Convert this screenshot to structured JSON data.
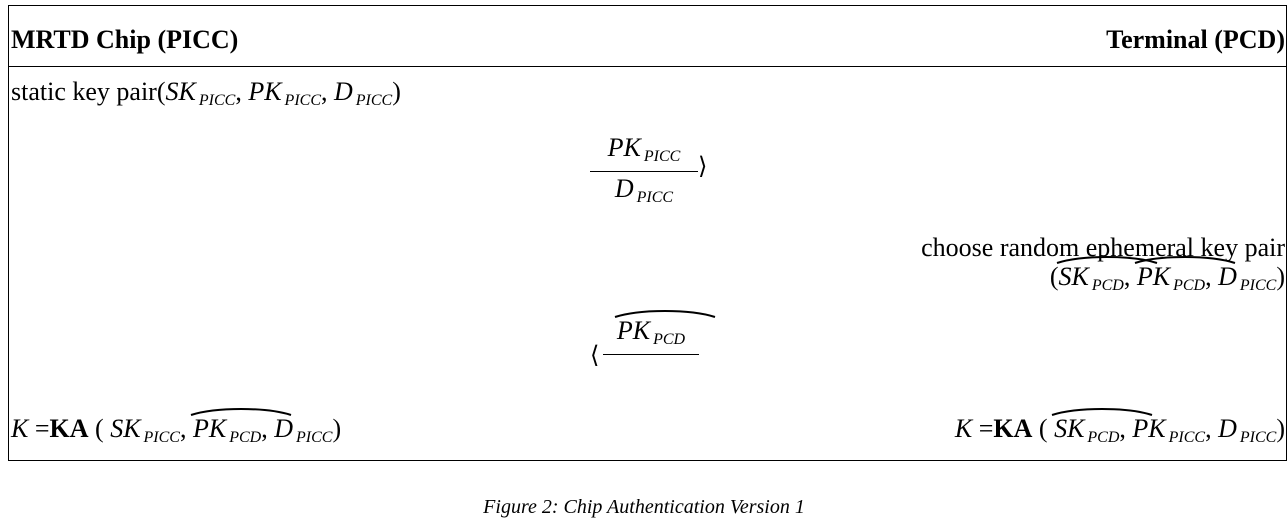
{
  "header": {
    "left": "MRTD Chip (PICC)",
    "right": "Terminal (PCD)"
  },
  "rows": {
    "static_label": "static key pair",
    "choose_text": "choose random ephemeral key pair"
  },
  "math": {
    "SK": "SK",
    "PK": "PK",
    "D": "D",
    "K": "K",
    "KA": "KA",
    "eq": "=",
    "lpar": "(",
    "rpar": ")",
    "comma": ",",
    "PICC": "PICC",
    "PCD": "PCD",
    "right_angle": "⟩",
    "left_angle": "⟨"
  },
  "caption": "Figure 2: Chip Authentication Version 1"
}
